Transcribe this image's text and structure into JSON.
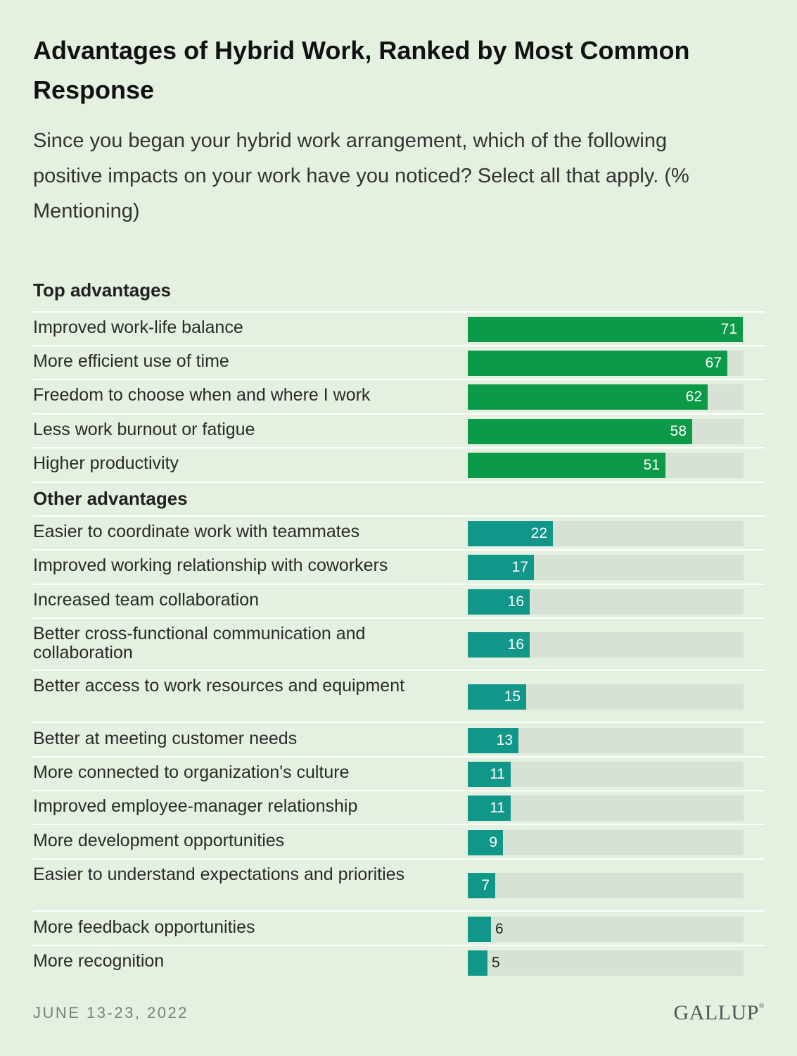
{
  "title": "Advantages of Hybrid Work, Ranked by Most Common Response",
  "subtitle": "Since you began your hybrid work arrangement, which of the following positive impacts on your work have you noticed? Select all that apply. (% Mentioning)",
  "footer": {
    "date": "JUNE 13-23, 2022",
    "logo": "GALLUP",
    "logo_mark": "®"
  },
  "colors": {
    "background": "#e4f1e1",
    "top": "#0c9a48",
    "other": "#11968a",
    "track": "#d6e2d4"
  },
  "chart_data": {
    "type": "bar",
    "orientation": "horizontal",
    "xlim": [
      0,
      100
    ],
    "groups": [
      {
        "name": "Top advantages",
        "categories": [
          "Improved work-life balance",
          "More efficient use of time",
          "Freedom to choose when and where I work",
          "Less work burnout or fatigue",
          "Higher productivity"
        ],
        "values": [
          71,
          67,
          62,
          58,
          51
        ]
      },
      {
        "name": "Other advantages",
        "categories": [
          "Easier to coordinate work with teammates",
          "Improved working relationship with coworkers",
          "Increased team collaboration",
          "Better cross-functional communication and collaboration",
          "Better access to work resources and equipment",
          "Better at meeting customer needs",
          "More connected to organization's culture",
          "Improved employee-manager relationship",
          "More development opportunities",
          "Easier to understand expectations and priorities",
          "More feedback opportunities",
          "More recognition"
        ],
        "values": [
          22,
          17,
          16,
          16,
          15,
          13,
          11,
          11,
          9,
          7,
          6,
          5
        ]
      }
    ]
  }
}
